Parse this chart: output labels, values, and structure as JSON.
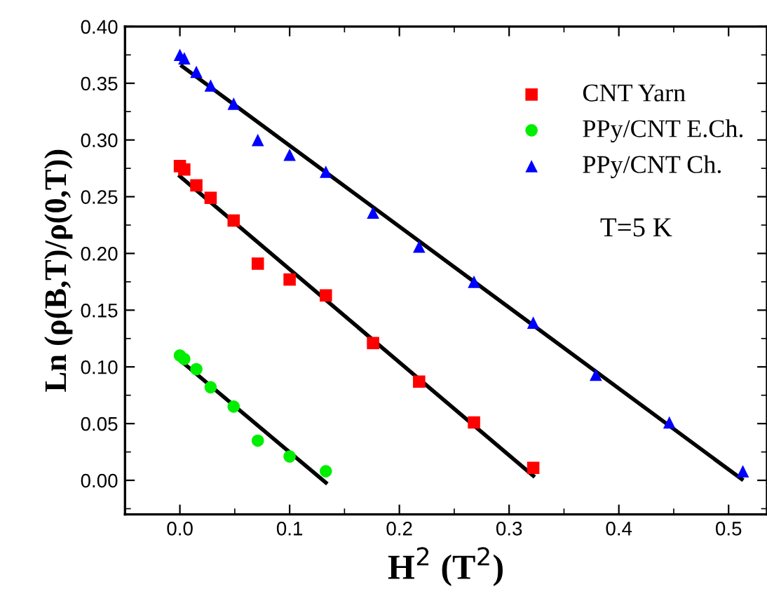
{
  "chart_data": {
    "type": "scatter",
    "xlabel": "H$^{2}$ (T$^{2}$)",
    "ylabel": "Ln (ρ(B,T)/ρ(0,T))",
    "annotations": [
      "T=5 K"
    ],
    "xlim": [
      -0.05,
      0.535
    ],
    "ylim": [
      -0.03,
      0.4
    ],
    "xticks": [
      {
        "value": 0,
        "label": "0.0"
      },
      {
        "value": 0.1,
        "label": "0.1"
      },
      {
        "value": 0.2,
        "label": "0.2"
      },
      {
        "value": 0.3,
        "label": "0.3"
      },
      {
        "value": 0.4,
        "label": "0.4"
      },
      {
        "value": 0.5,
        "label": "0.5"
      }
    ],
    "yticks": [
      {
        "value": 0,
        "label": "0.00"
      },
      {
        "value": 0.05,
        "label": "0.05"
      },
      {
        "value": 0.1,
        "label": "0.10"
      },
      {
        "value": 0.15,
        "label": "0.15"
      },
      {
        "value": 0.2,
        "label": "0.20"
      },
      {
        "value": 0.25,
        "label": "0.25"
      },
      {
        "value": 0.3,
        "label": "0.30"
      },
      {
        "value": 0.35,
        "label": "0.35"
      },
      {
        "value": 0.4,
        "label": "0.40"
      }
    ],
    "grid": false,
    "legend": "top right",
    "series": [
      {
        "name": "CNT Yarn",
        "color": "#ff0000",
        "marker": "square",
        "x": [
          0,
          0.004,
          0.015,
          0.028,
          0.049,
          0.071,
          0.1,
          0.133,
          0.176,
          0.218,
          0.268,
          0.322
        ],
        "values": [
          0.277,
          0.274,
          0.26,
          0.249,
          0.229,
          0.191,
          0.177,
          0.163,
          0.121,
          0.087,
          0.051,
          0.011
        ]
      },
      {
        "name": "PPy/CNT E.Ch.",
        "color": "#00ee00",
        "marker": "circle",
        "x": [
          0,
          0.004,
          0.015,
          0.028,
          0.049,
          0.071,
          0.1,
          0.133
        ],
        "values": [
          0.11,
          0.107,
          0.098,
          0.082,
          0.065,
          0.035,
          0.021,
          0.008
        ]
      },
      {
        "name": "PPy/CNT Ch.",
        "color": "#0000ff",
        "marker": "triangle",
        "x": [
          0,
          0.004,
          0.015,
          0.028,
          0.049,
          0.071,
          0.1,
          0.133,
          0.176,
          0.218,
          0.268,
          0.322,
          0.379,
          0.446,
          0.513
        ],
        "values": [
          0.375,
          0.372,
          0.36,
          0.348,
          0.332,
          0.3,
          0.287,
          0.272,
          0.236,
          0.206,
          0.175,
          0.139,
          0.093,
          0.051,
          0.008
        ]
      },
      {
        "type": "line",
        "color": "#000000",
        "marker": "none",
        "x": [
          0.002,
          0.512
        ],
        "values": [
          0.365,
          0.001
        ]
      },
      {
        "type": "line",
        "color": "#000000",
        "marker": "none",
        "x": [
          0.0,
          0.322
        ],
        "values": [
          0.268,
          0.004
        ]
      },
      {
        "type": "line",
        "color": "#000000",
        "marker": "none",
        "x": [
          0.0,
          0.133
        ],
        "values": [
          0.106,
          -0.002
        ]
      }
    ]
  }
}
